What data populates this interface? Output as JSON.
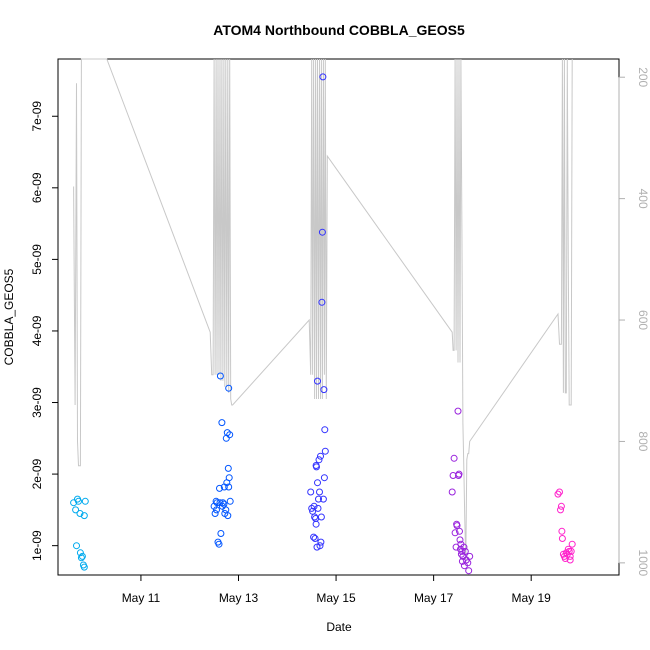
{
  "chart_data": {
    "type": "scatter",
    "title": "ATOM4 Northbound COBBLA_GEOS5",
    "xlabel": "Date",
    "ylabel": "COBBLA_GEOS5",
    "x_unit": "day of May (fractional)",
    "xlim": [
      9.3,
      20.8
    ],
    "ylim": [
      5.9e-10,
      7.8e-09
    ],
    "y_ticks": [
      1e-09,
      2e-09,
      3e-09,
      4e-09,
      5e-09,
      6e-09,
      7e-09
    ],
    "y_tick_labels": [
      "1e-09",
      "2e-09",
      "3e-09",
      "4e-09",
      "5e-09",
      "6e-09",
      "7e-09"
    ],
    "x_ticks": [
      11,
      13,
      15,
      17,
      19
    ],
    "x_tick_labels": [
      "May 11",
      "May 13",
      "May 15",
      "May 17",
      "May 19"
    ],
    "right_axis": {
      "ylim": [
        1020,
        170
      ],
      "ticks": [
        200,
        400,
        600,
        800,
        1000
      ],
      "tick_labels": [
        "200",
        "400",
        "600",
        "800",
        "1000"
      ],
      "color": "#b0b0b0"
    },
    "grid": false,
    "legend": "none",
    "point_colors": [
      "#00aaee",
      "#0055ff",
      "#3333ff",
      "#9922dd",
      "#ff22cc"
    ],
    "line_color": "#c8c8c8",
    "series": [
      {
        "points": [
          [
            9.62,
            1.6e-09
          ],
          [
            9.66,
            1.5e-09
          ],
          [
            9.7,
            1.65e-09
          ],
          [
            9.68,
            1e-09
          ],
          [
            9.72,
            1.62e-09
          ],
          [
            9.75,
            1.45e-09
          ],
          [
            9.76,
            9e-10
          ],
          [
            9.78,
            8.3e-10
          ],
          [
            9.8,
            8.5e-10
          ],
          [
            9.82,
            7.3e-10
          ],
          [
            9.84,
            7e-10
          ],
          [
            9.86,
            1.62e-09
          ],
          [
            9.84,
            1.42e-09
          ]
        ]
      },
      {
        "points": [
          [
            12.5,
            1.55e-09
          ],
          [
            12.52,
            1.45e-09
          ],
          [
            12.54,
            1.62e-09
          ],
          [
            12.55,
            1.5e-09
          ],
          [
            12.56,
            1.6e-09
          ],
          [
            12.58,
            1.05e-09
          ],
          [
            12.6,
            1.02e-09
          ],
          [
            12.61,
            1.8e-09
          ],
          [
            12.62,
            1.6e-09
          ],
          [
            12.63,
            3.37e-09
          ],
          [
            12.64,
            1.17e-09
          ],
          [
            12.66,
            2.72e-09
          ],
          [
            12.67,
            1.55e-09
          ],
          [
            12.68,
            1.6e-09
          ],
          [
            12.7,
            1.58e-09
          ],
          [
            12.71,
            1.82e-09
          ],
          [
            12.72,
            1.45e-09
          ],
          [
            12.74,
            1.5e-09
          ],
          [
            12.75,
            2.5e-09
          ],
          [
            12.76,
            1.88e-09
          ],
          [
            12.77,
            2.58e-09
          ],
          [
            12.79,
            2.08e-09
          ],
          [
            12.8,
            3.2e-09
          ],
          [
            12.81,
            1.95e-09
          ],
          [
            12.82,
            2.55e-09
          ],
          [
            12.8,
            1.82e-09
          ],
          [
            12.83,
            1.62e-09
          ],
          [
            12.78,
            1.42e-09
          ]
        ]
      },
      {
        "points": [
          [
            14.48,
            1.75e-09
          ],
          [
            14.5,
            1.52e-09
          ],
          [
            14.52,
            1.48e-09
          ],
          [
            14.54,
            1.12e-09
          ],
          [
            14.55,
            1.55e-09
          ],
          [
            14.56,
            1.4e-09
          ],
          [
            14.57,
            1.1e-09
          ],
          [
            14.58,
            1.38e-09
          ],
          [
            14.59,
            1.3e-09
          ],
          [
            14.6,
            2.1e-09
          ],
          [
            14.61,
            9.8e-10
          ],
          [
            14.62,
            1.88e-09
          ],
          [
            14.63,
            1.52e-09
          ],
          [
            14.64,
            1.65e-09
          ],
          [
            14.65,
            2.2e-09
          ],
          [
            14.66,
            1.75e-09
          ],
          [
            14.67,
            1e-09
          ],
          [
            14.68,
            2.25e-09
          ],
          [
            14.69,
            1.05e-09
          ],
          [
            14.7,
            1.4e-09
          ],
          [
            14.71,
            4.4e-09
          ],
          [
            14.72,
            5.38e-09
          ],
          [
            14.73,
            7.55e-09
          ],
          [
            14.75,
            3.18e-09
          ],
          [
            14.76,
            1.95e-09
          ],
          [
            14.77,
            2.62e-09
          ],
          [
            14.78,
            2.32e-09
          ],
          [
            14.62,
            3.3e-09
          ],
          [
            14.59,
            2.12e-09
          ],
          [
            14.74,
            1.65e-09
          ]
        ]
      },
      {
        "points": [
          [
            17.38,
            1.75e-09
          ],
          [
            17.4,
            1.98e-09
          ],
          [
            17.42,
            2.22e-09
          ],
          [
            17.44,
            1.18e-09
          ],
          [
            17.46,
            9.8e-10
          ],
          [
            17.47,
            1.3e-09
          ],
          [
            17.48,
            1.28e-09
          ],
          [
            17.5,
            2.88e-09
          ],
          [
            17.51,
            1.98e-09
          ],
          [
            17.52,
            2e-09
          ],
          [
            17.53,
            1.2e-09
          ],
          [
            17.54,
            1.08e-09
          ],
          [
            17.55,
            9.5e-10
          ],
          [
            17.56,
            1.02e-09
          ],
          [
            17.57,
            8.8e-10
          ],
          [
            17.58,
            9.2e-10
          ],
          [
            17.59,
            7.8e-10
          ],
          [
            17.6,
            8.5e-10
          ],
          [
            17.62,
            9.8e-10
          ],
          [
            17.63,
            7.2e-10
          ],
          [
            17.65,
            9.2e-10
          ],
          [
            17.67,
            8e-10
          ],
          [
            17.7,
            7.6e-10
          ],
          [
            17.72,
            6.5e-10
          ],
          [
            17.74,
            8.5e-10
          ]
        ]
      },
      {
        "points": [
          [
            19.55,
            1.72e-09
          ],
          [
            19.58,
            1.75e-09
          ],
          [
            19.6,
            1.5e-09
          ],
          [
            19.62,
            1.55e-09
          ],
          [
            19.63,
            1.2e-09
          ],
          [
            19.64,
            1.1e-09
          ],
          [
            19.66,
            8.8e-10
          ],
          [
            19.68,
            8.5e-10
          ],
          [
            19.7,
            8.2e-10
          ],
          [
            19.72,
            9e-10
          ],
          [
            19.74,
            8.8e-10
          ],
          [
            19.76,
            9.5e-10
          ],
          [
            19.78,
            9.2e-10
          ],
          [
            19.8,
            8.5e-10
          ],
          [
            19.82,
            9.2e-10
          ],
          [
            19.84,
            1.02e-09
          ],
          [
            19.8,
            8e-10
          ]
        ]
      }
    ],
    "line_series": {
      "x": [
        9.62,
        9.65,
        9.68,
        9.7,
        9.72,
        9.74,
        9.76,
        9.78,
        9.8,
        9.82,
        9.84,
        9.86,
        9.88,
        10.3,
        12.42,
        12.45,
        12.48,
        12.5,
        12.52,
        12.54,
        12.56,
        12.58,
        12.6,
        12.62,
        12.64,
        12.66,
        12.68,
        12.7,
        12.72,
        12.74,
        12.76,
        12.78,
        12.8,
        12.82,
        12.84,
        12.86,
        12.88,
        14.45,
        14.48,
        14.5,
        14.52,
        14.54,
        14.56,
        14.58,
        14.6,
        14.62,
        14.64,
        14.66,
        14.68,
        14.7,
        14.72,
        14.74,
        14.76,
        14.78,
        14.8,
        14.82,
        17.38,
        17.4,
        17.42,
        17.44,
        17.46,
        17.48,
        17.5,
        17.52,
        17.54,
        17.56,
        17.58,
        17.6,
        17.62,
        17.64,
        17.66,
        17.68,
        17.7,
        17.72,
        17.74,
        19.55,
        19.58,
        19.6,
        19.62,
        19.64,
        19.66,
        19.68,
        19.7,
        19.72,
        19.74,
        19.76,
        19.78,
        19.8,
        19.82,
        19.84
      ],
      "y": [
        380,
        740,
        210,
        800,
        840,
        840,
        840,
        170,
        170,
        170,
        170,
        170,
        170,
        165,
        620,
        690,
        690,
        170,
        690,
        170,
        690,
        170,
        690,
        170,
        700,
        170,
        700,
        170,
        710,
        170,
        710,
        170,
        720,
        170,
        730,
        740,
        740,
        600,
        690,
        170,
        690,
        170,
        730,
        170,
        730,
        170,
        730,
        170,
        730,
        170,
        730,
        170,
        690,
        170,
        730,
        330,
        620,
        650,
        650,
        170,
        650,
        170,
        670,
        170,
        670,
        170,
        450,
        770,
        850,
        930,
        1000,
        830,
        820,
        820,
        800,
        590,
        640,
        640,
        640,
        170,
        720,
        170,
        720,
        720,
        170,
        510,
        740,
        740,
        740,
        170
      ]
    }
  }
}
